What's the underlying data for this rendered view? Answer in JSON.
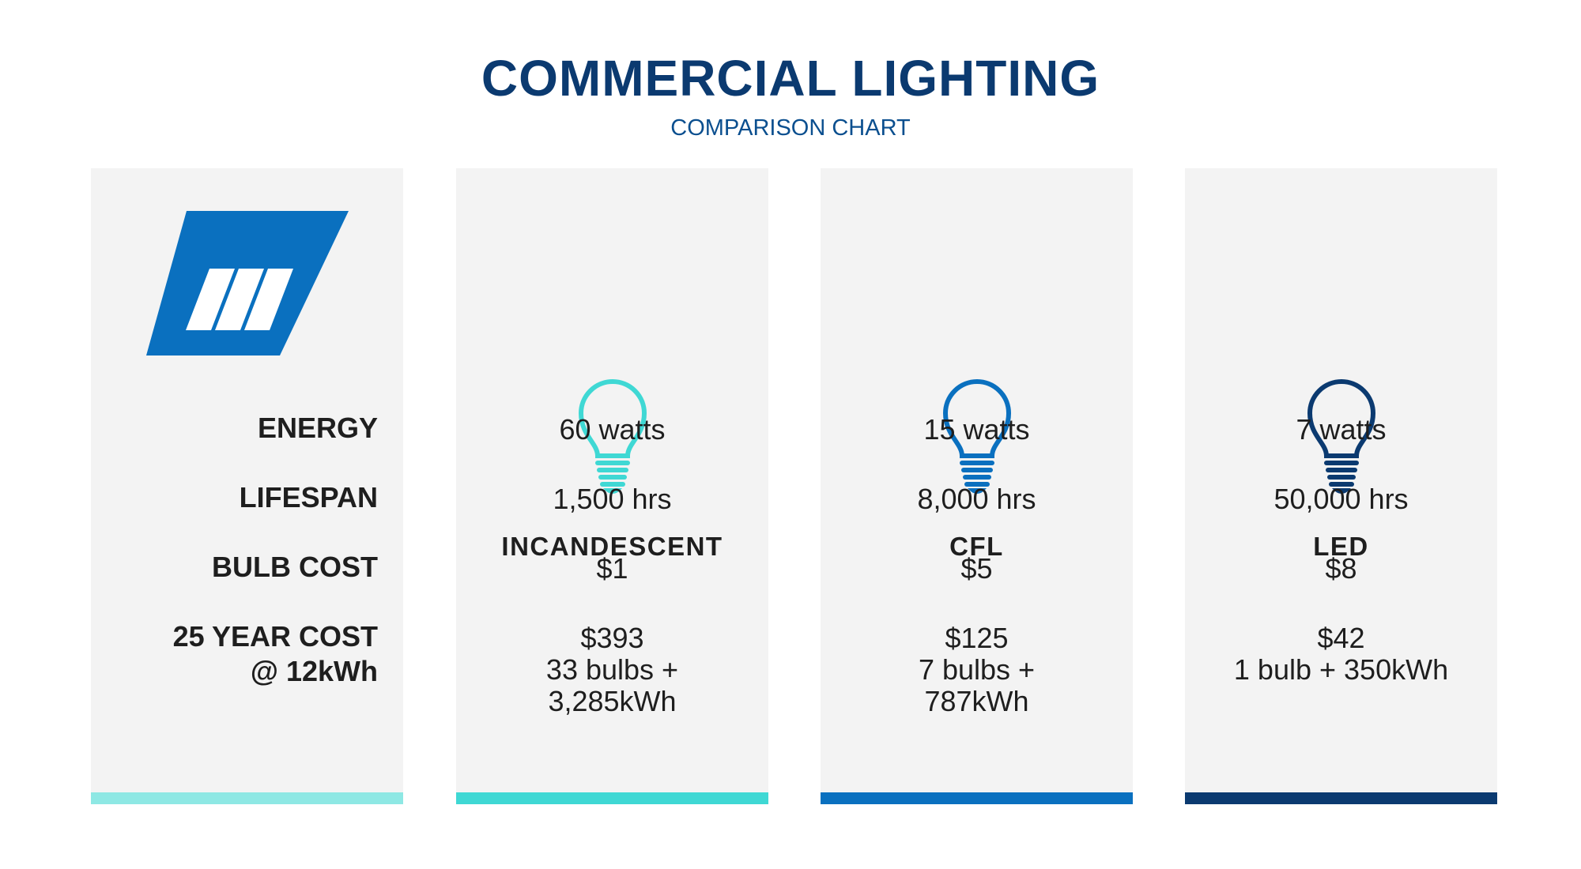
{
  "header": {
    "title": "COMMERCIAL LIGHTING",
    "subtitle": "COMPARISON CHART"
  },
  "label_panel": {
    "color": "#8ee8e4",
    "row_labels": [
      [
        "ENERGY"
      ],
      [
        "LIFESPAN"
      ],
      [
        "BULB COST"
      ],
      [
        "25 YEAR COST",
        "@ 12kWh"
      ]
    ]
  },
  "columns": [
    {
      "name": "INCANDESCENT",
      "color": "#3fd8d4",
      "cells": [
        [
          "60 watts"
        ],
        [
          "1,500 hrs"
        ],
        [
          "$1"
        ],
        [
          "$393",
          "33 bulbs +",
          "3,285kWh"
        ]
      ]
    },
    {
      "name": "CFL",
      "color": "#0a70bf",
      "cells": [
        [
          "15 watts"
        ],
        [
          "8,000 hrs"
        ],
        [
          "$5"
        ],
        [
          "$125",
          "7 bulbs +",
          "787kWh"
        ]
      ]
    },
    {
      "name": "LED",
      "color": "#0b3a70",
      "cells": [
        [
          "7 watts"
        ],
        [
          "50,000 hrs"
        ],
        [
          "$8"
        ],
        [
          "$42",
          "1 bulb + 350kWh"
        ]
      ]
    }
  ]
}
